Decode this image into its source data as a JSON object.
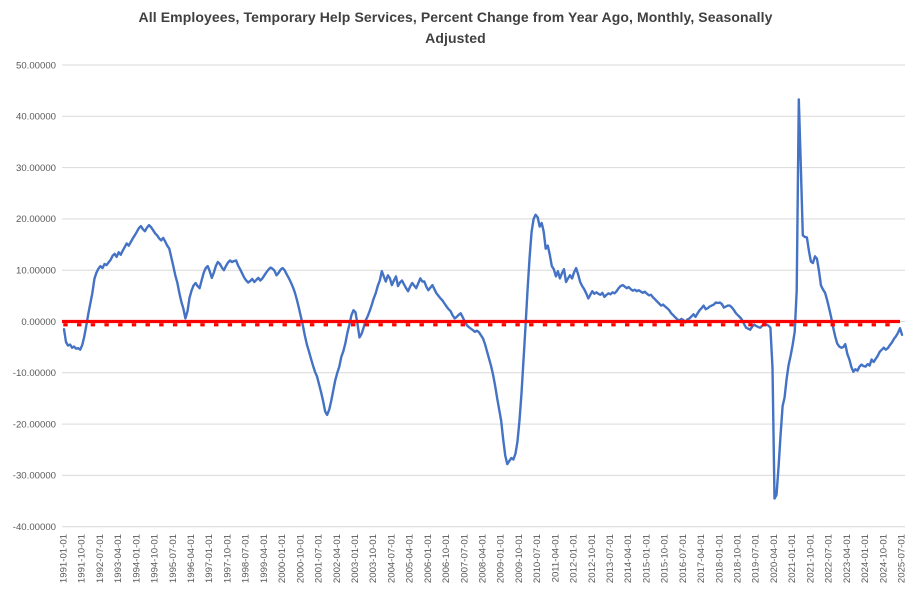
{
  "title": {
    "line1": "All Employees, Temporary Help Services, Percent Change from Year Ago, Monthly, Seasonally",
    "line2": "Adjusted"
  },
  "colors": {
    "series": "#4472C4",
    "zero_line": "#FF0000",
    "gridline": "#D9D9D9",
    "axis_text": "#595959",
    "title_text": "#404040",
    "background": "#FFFFFF"
  },
  "y_axis": {
    "labels": [
      "50.00000",
      "40.00000",
      "30.00000",
      "20.00000",
      "10.00000",
      "0.00000",
      "-10.00000",
      "-20.00000",
      "-30.00000",
      "-40.00000"
    ],
    "values": [
      50,
      40,
      30,
      20,
      10,
      0,
      -10,
      -20,
      -30,
      -40
    ]
  },
  "x_axis": {
    "labels": [
      "1991-01-01",
      "1991-10-01",
      "1992-07-01",
      "1993-04-01",
      "1994-01-01",
      "1994-10-01",
      "1995-07-01",
      "1996-04-01",
      "1997-01-01",
      "1997-10-01",
      "1998-07-01",
      "1999-04-01",
      "2000-01-01",
      "2000-10-01",
      "2001-07-01",
      "2002-04-01",
      "2003-01-01",
      "2003-10-01",
      "2004-07-01",
      "2005-04-01",
      "2006-01-01",
      "2006-10-01",
      "2007-07-01",
      "2008-04-01",
      "2009-01-01",
      "2009-10-01",
      "2010-07-01",
      "2011-04-01",
      "2012-01-01",
      "2012-10-01",
      "2013-07-01",
      "2014-04-01",
      "2015-01-01",
      "2015-10-01",
      "2016-07-01",
      "2017-04-01",
      "2018-01-01",
      "2018-10-01",
      "2019-07-01",
      "2020-04-01",
      "2021-01-01",
      "2021-10-01",
      "2022-07-01",
      "2023-04-01",
      "2024-01-01",
      "2024-10-01",
      "2025-07-01"
    ]
  },
  "chart_data": {
    "type": "line",
    "title": "All Employees, Temporary Help Services, Percent Change from Year Ago, Monthly, Seasonally Adjusted",
    "xlabel": "",
    "ylabel": "",
    "x_start": "1991-01",
    "x_end": "2025-07",
    "frequency": "monthly",
    "ylim": [
      -40,
      50
    ],
    "y_tick_step": 10,
    "grid": true,
    "legend": "none",
    "series": [
      {
        "name": "percent-change-from-year-ago",
        "color": "#4472C4",
        "values": [
          -1.5,
          -4.0,
          -4.7,
          -4.5,
          -5.1,
          -4.9,
          -5.3,
          -5.2,
          -5.5,
          -4.6,
          -3.0,
          -0.8,
          1.5,
          3.5,
          5.5,
          8.3,
          9.5,
          10.3,
          10.8,
          10.4,
          11.2,
          11.0,
          11.5,
          12.0,
          12.8,
          13.2,
          12.6,
          13.5,
          13.0,
          13.8,
          14.5,
          15.2,
          14.8,
          15.5,
          16.2,
          16.8,
          17.5,
          18.2,
          18.6,
          18.0,
          17.6,
          18.3,
          18.8,
          18.4,
          17.8,
          17.2,
          16.8,
          16.2,
          15.8,
          16.3,
          15.6,
          14.8,
          14.2,
          12.5,
          10.8,
          9.0,
          7.5,
          5.5,
          3.8,
          2.5,
          0.6,
          2.0,
          4.6,
          6.0,
          7.0,
          7.5,
          6.9,
          6.5,
          8.0,
          9.5,
          10.4,
          10.8,
          9.8,
          8.5,
          9.5,
          10.8,
          11.6,
          11.2,
          10.5,
          10.0,
          10.8,
          11.5,
          11.9,
          11.6,
          11.8,
          11.9,
          10.9,
          10.2,
          9.4,
          8.6,
          8.0,
          7.6,
          7.9,
          8.3,
          7.7,
          8.1,
          8.5,
          8.0,
          8.4,
          9.0,
          9.6,
          10.1,
          10.5,
          10.3,
          9.9,
          9.0,
          9.5,
          10.1,
          10.4,
          10.0,
          9.2,
          8.5,
          7.7,
          6.8,
          5.7,
          4.3,
          2.7,
          1.0,
          -0.8,
          -2.8,
          -4.5,
          -5.8,
          -7.2,
          -8.6,
          -9.8,
          -10.7,
          -12.2,
          -13.8,
          -15.5,
          -17.5,
          -18.2,
          -17.2,
          -15.5,
          -13.5,
          -11.5,
          -10.0,
          -8.8,
          -6.9,
          -5.8,
          -4.2,
          -2.2,
          -0.6,
          1.2,
          2.2,
          1.8,
          -0.5,
          -3.1,
          -2.4,
          -1.2,
          0.2,
          1.0,
          2.0,
          3.2,
          4.5,
          5.5,
          6.9,
          8.0,
          9.8,
          8.8,
          7.8,
          9.0,
          8.4,
          7.1,
          8.0,
          8.8,
          6.9,
          7.6,
          8.0,
          7.2,
          6.5,
          5.9,
          6.8,
          7.5,
          7.0,
          6.5,
          7.4,
          8.4,
          7.8,
          7.8,
          6.8,
          6.1,
          6.6,
          7.1,
          6.3,
          5.5,
          5.0,
          4.5,
          4.1,
          3.5,
          2.9,
          2.4,
          2.0,
          1.2,
          0.6,
          0.9,
          1.3,
          1.6,
          0.8,
          0.0,
          -0.7,
          -1.1,
          -1.4,
          -1.7,
          -2.0,
          -1.8,
          -2.1,
          -2.7,
          -3.3,
          -4.4,
          -5.8,
          -7.3,
          -8.7,
          -10.4,
          -12.5,
          -15.0,
          -17.2,
          -19.4,
          -23.0,
          -26.2,
          -27.8,
          -27.2,
          -26.6,
          -26.9,
          -25.8,
          -23.5,
          -19.5,
          -14.0,
          -7.5,
          -1.0,
          6.0,
          12.5,
          17.5,
          20.0,
          20.8,
          20.3,
          18.5,
          19.2,
          17.5,
          14.2,
          14.8,
          13.0,
          10.8,
          10.2,
          8.8,
          9.8,
          8.4,
          9.4,
          10.2,
          7.7,
          8.4,
          9.0,
          8.4,
          9.6,
          10.4,
          9.2,
          7.7,
          6.9,
          6.3,
          5.5,
          4.5,
          5.2,
          5.9,
          5.4,
          5.7,
          5.4,
          5.2,
          5.6,
          4.8,
          5.2,
          5.5,
          5.3,
          5.7,
          5.5,
          5.9,
          6.5,
          6.9,
          7.1,
          6.8,
          6.5,
          6.7,
          6.3,
          6.0,
          6.2,
          5.9,
          6.1,
          5.8,
          5.6,
          5.8,
          5.4,
          5.1,
          5.2,
          4.7,
          4.3,
          3.9,
          3.5,
          3.1,
          3.3,
          2.9,
          2.6,
          2.2,
          1.6,
          1.2,
          0.8,
          0.4,
          0.2,
          0.5,
          0.3,
          -0.2,
          0.4,
          0.6,
          1.0,
          1.4,
          0.9,
          1.6,
          2.2,
          2.6,
          3.1,
          2.4,
          2.6,
          2.9,
          3.1,
          3.3,
          3.7,
          3.6,
          3.7,
          3.4,
          2.7,
          2.9,
          3.1,
          3.1,
          2.7,
          2.2,
          1.6,
          1.2,
          0.8,
          0.3,
          -0.5,
          -1.2,
          -1.4,
          -1.6,
          -1.0,
          -0.6,
          -0.9,
          -1.1,
          -1.2,
          -0.8,
          -0.4,
          -0.6,
          -0.8,
          -1.2,
          -9.0,
          -34.5,
          -33.8,
          -28.5,
          -22.0,
          -16.5,
          -14.8,
          -11.2,
          -8.5,
          -6.6,
          -4.5,
          -2.0,
          6.0,
          43.3,
          30.4,
          16.8,
          16.5,
          16.4,
          13.8,
          11.7,
          11.4,
          12.7,
          12.2,
          9.8,
          7.0,
          6.2,
          5.6,
          4.2,
          2.6,
          0.8,
          -1.2,
          -2.9,
          -4.3,
          -4.9,
          -5.1,
          -5.0,
          -4.4,
          -6.3,
          -7.4,
          -8.9,
          -9.8,
          -9.3,
          -9.6,
          -8.8,
          -8.4,
          -8.7,
          -8.8,
          -8.3,
          -8.6,
          -7.4,
          -7.9,
          -7.3,
          -6.7,
          -5.9,
          -5.5,
          -5.1,
          -5.5,
          -5.2,
          -4.6,
          -4.1,
          -3.4,
          -2.9,
          -2.2,
          -1.3,
          -2.6
        ]
      },
      {
        "name": "zero-reference-line",
        "color": "#FF0000",
        "constant": 0
      }
    ]
  }
}
